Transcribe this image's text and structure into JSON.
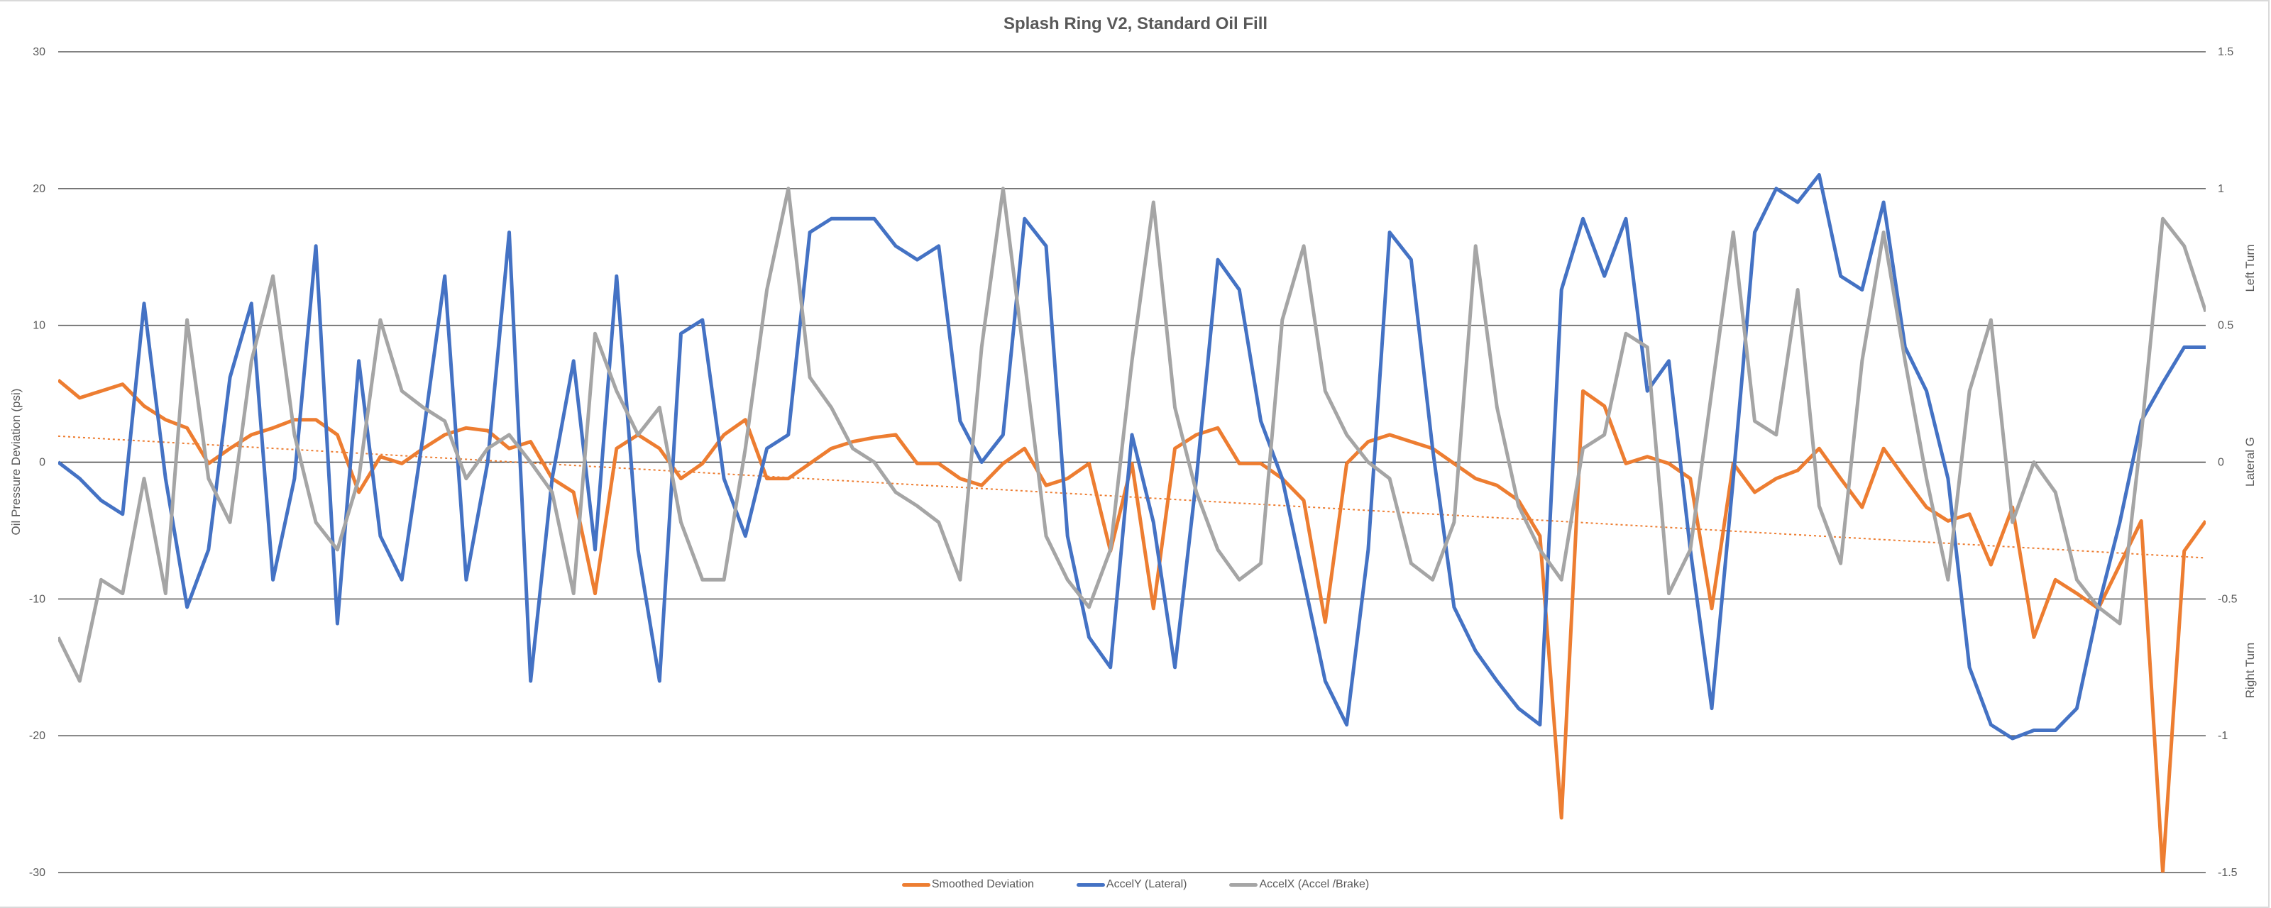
{
  "chart_data": {
    "type": "line",
    "title": "Splash Ring V2, Standard Oil Fill",
    "ylabel": "Oil Pressure Deviation (psi)",
    "y2label": "Lateral G",
    "y2_annotations": {
      "top": "Left Turn",
      "bottom": "Right Turn"
    },
    "ylim": [
      -30,
      30
    ],
    "y2lim": [
      -1.5,
      1.5
    ],
    "yticks": [
      "30",
      "20",
      "10",
      "0",
      "-10",
      "-20",
      "-30"
    ],
    "y2ticks": [
      "1.5",
      "1",
      "0.5",
      "0",
      "-0.5",
      "-1",
      "-1.5"
    ],
    "grid": true,
    "legend_position": "bottom",
    "series": [
      {
        "name": "Smoothed Deviation",
        "axis": "left",
        "color": "#ED7D31",
        "values": [
          6,
          4.7,
          5.2,
          5.7,
          4.1,
          3.1,
          2.5,
          -0.1,
          1,
          2,
          2.5,
          3.1,
          3.1,
          2,
          -2.2,
          0.4,
          -0.1,
          1,
          2,
          2.5,
          2.3,
          1,
          1.5,
          -1.2,
          -2.2,
          -9.6,
          1,
          2,
          1,
          -1.2,
          -0.1,
          2,
          3.1,
          -1.2,
          -1.2,
          -0.1,
          1,
          1.5,
          1.8,
          2,
          -0.1,
          -0.1,
          -1.2,
          -1.7,
          -0.1,
          1,
          -1.7,
          -1.2,
          -0.1,
          -6.5,
          -0.1,
          -10.7,
          1,
          2,
          2.5,
          -0.1,
          -0.1,
          -1.2,
          -2.8,
          -11.7,
          -0.1,
          1.5,
          2,
          1.5,
          1,
          -0.1,
          -1.2,
          -1.7,
          -2.8,
          -5.4,
          -26,
          5.2,
          4.1,
          -0.1,
          0.4,
          -0.1,
          -1.2,
          -10.7,
          -0.1,
          -2.2,
          -1.2,
          -0.6,
          1,
          -1.2,
          -3.3,
          1,
          -1.2,
          -3.3,
          -4.3,
          -3.8,
          -7.5,
          -3.3,
          -12.8,
          -8.6,
          -9.6,
          -10.7,
          -7.5,
          -4.3,
          -30,
          -6.5,
          -4.3
        ]
      },
      {
        "name": "AccelY (Lateral)",
        "axis": "right",
        "color": "#4472C4",
        "values": [
          0,
          -0.06,
          -0.14,
          -0.19,
          0.58,
          -0.06,
          -0.53,
          -0.32,
          0.31,
          0.58,
          -0.43,
          -0.06,
          0.79,
          -0.59,
          0.37,
          -0.27,
          -0.43,
          0.1,
          0.68,
          -0.43,
          0,
          0.84,
          -0.8,
          -0.06,
          0.37,
          -0.32,
          0.68,
          -0.32,
          -0.8,
          0.47,
          0.52,
          -0.06,
          -0.27,
          0.05,
          0.1,
          0.84,
          0.89,
          0.89,
          0.89,
          0.79,
          0.74,
          0.79,
          0.15,
          0,
          0.1,
          0.89,
          0.79,
          -0.27,
          -0.64,
          -0.75,
          0.1,
          -0.22,
          -0.75,
          -0.06,
          0.74,
          0.63,
          0.15,
          -0.06,
          -0.43,
          -0.8,
          -0.96,
          -0.32,
          0.84,
          0.74,
          0.05,
          -0.53,
          -0.69,
          -0.8,
          -0.9,
          -0.96,
          0.63,
          0.89,
          0.68,
          0.89,
          0.26,
          0.37,
          -0.32,
          -0.9,
          -0.06,
          0.84,
          1.0,
          0.95,
          1.05,
          0.68,
          0.63,
          0.95,
          0.42,
          0.26,
          -0.06,
          -0.75,
          -0.96,
          -1.01,
          -0.98,
          -0.98,
          -0.9,
          -0.53,
          -0.22,
          0.15,
          0.29,
          0.42,
          0.42
        ]
      },
      {
        "name": "AccelX (Accel /Brake)",
        "axis": "right",
        "color": "#A5A5A5",
        "values": [
          -0.64,
          -0.8,
          -0.43,
          -0.48,
          -0.06,
          -0.48,
          0.52,
          -0.06,
          -0.22,
          0.37,
          0.68,
          0.1,
          -0.22,
          -0.32,
          -0.06,
          0.52,
          0.26,
          0.2,
          0.15,
          -0.06,
          0.05,
          0.1,
          0,
          -0.11,
          -0.48,
          0.47,
          0.26,
          0.1,
          0.2,
          -0.22,
          -0.43,
          -0.43,
          0.05,
          0.63,
          1.0,
          0.31,
          0.2,
          0.05,
          0,
          -0.11,
          -0.16,
          -0.22,
          -0.43,
          0.42,
          1.0,
          0.37,
          -0.27,
          -0.43,
          -0.53,
          -0.32,
          0.37,
          0.95,
          0.2,
          -0.11,
          -0.32,
          -0.43,
          -0.37,
          0.52,
          0.79,
          0.26,
          0.1,
          0,
          -0.06,
          -0.37,
          -0.43,
          -0.22,
          0.79,
          0.2,
          -0.16,
          -0.32,
          -0.43,
          0.05,
          0.1,
          0.47,
          0.42,
          -0.48,
          -0.32,
          0.26,
          0.84,
          0.15,
          0.1,
          0.63,
          -0.16,
          -0.37,
          0.37,
          0.84,
          0.37,
          -0.06,
          -0.43,
          0.26,
          0.52,
          -0.22,
          0,
          -0.11,
          -0.43,
          -0.53,
          -0.59,
          0.1,
          0.89,
          0.79,
          0.55
        ]
      }
    ],
    "trendline": {
      "series": "Smoothed Deviation",
      "type": "linear",
      "start": 1.9,
      "end": -7.0,
      "color": "#ED7D31"
    }
  }
}
